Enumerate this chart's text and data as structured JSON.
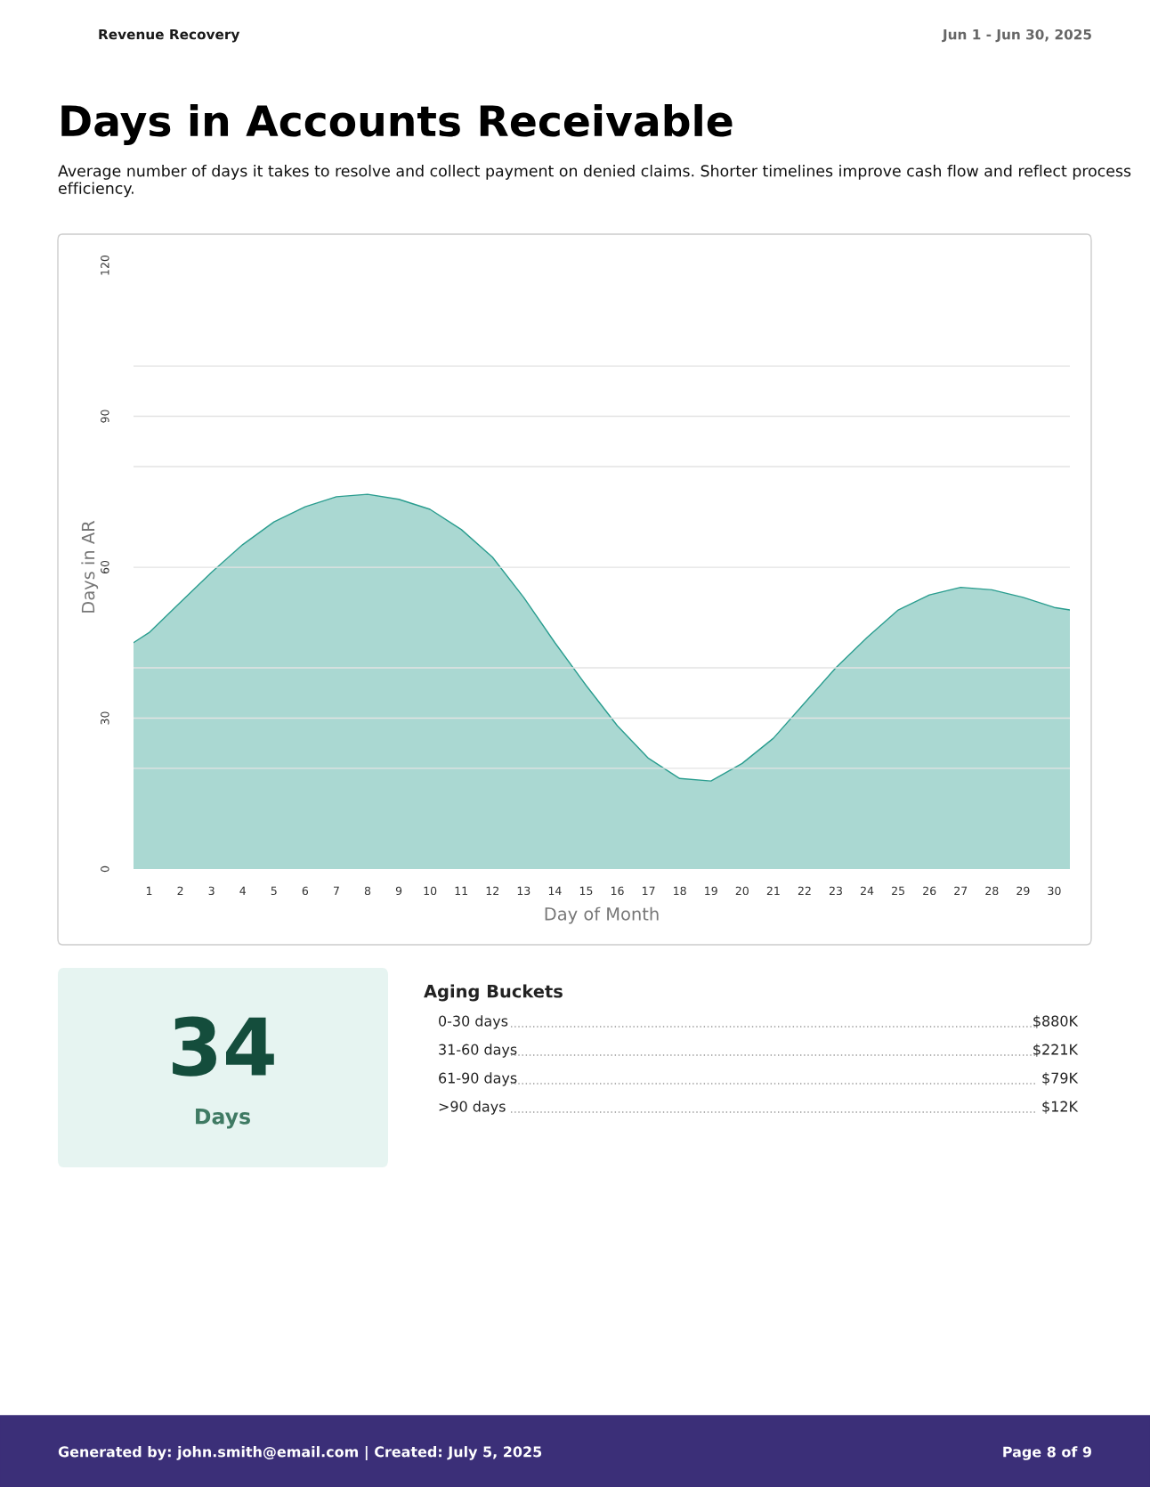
{
  "chart_data": [
    {
      "type": "area",
      "title": "Days in Accounts Receivable",
      "subtitle": "Average number of days it takes to resolve and collect payment on denied claims. Shorter timelines improve cash flow and reflect process efficiency.",
      "xlabel": "Day of Month",
      "ylabel": "Days in AR",
      "x": [
        0.5,
        1,
        2,
        3,
        4,
        5,
        6,
        7,
        8,
        9,
        10,
        11,
        12,
        13,
        14,
        15,
        16,
        17,
        18,
        19,
        20,
        21,
        22,
        23,
        24,
        25,
        26,
        27,
        28,
        29,
        30,
        30.5
      ],
      "series": [
        {
          "color": "#2a9d8f",
          "values": [
            45,
            47,
            53,
            59,
            64.5,
            69,
            72,
            74,
            74.5,
            73.5,
            71.5,
            67.5,
            62,
            54,
            45,
            36.5,
            28.5,
            22,
            18,
            17.5,
            21,
            26,
            33,
            40,
            46,
            51.5,
            54.5,
            56,
            55.5,
            54,
            52,
            51.5
          ]
        }
      ],
      "xlim": [
        0.5,
        30.5
      ],
      "xticks": [
        1,
        2,
        3,
        4,
        5,
        6,
        7,
        8,
        9,
        10,
        11,
        12,
        13,
        14,
        15,
        16,
        17,
        18,
        19,
        20,
        21,
        22,
        23,
        24,
        25,
        26,
        27,
        28,
        29,
        30
      ],
      "ylim": [
        0,
        120
      ],
      "yticks": [
        0,
        {
          "value": 20,
          "label": null
        },
        30,
        {
          "value": 40,
          "label": null
        },
        60,
        {
          "value": 80,
          "label": null
        },
        90,
        {
          "value": 100,
          "label": null
        },
        120
      ],
      "grid": "y",
      "legend": false,
      "annotations": [
        "Revenue Recovery",
        "Jun 1 - Jun 30, 2025",
        "Generated by: john.smith@email.com | Created: July 5, 2025",
        "Page 8 of 9"
      ]
    },
    {
      "type": "other",
      "title": "34",
      "subtitle": "Days"
    },
    {
      "type": "other",
      "title": "Aging Buckets",
      "categories": [
        "0-30 days",
        "31-60 days",
        "61-90 days",
        ">90 days"
      ],
      "value_labels": [
        "$880K",
        "$221K",
        "$79K",
        "$12K"
      ]
    }
  ]
}
